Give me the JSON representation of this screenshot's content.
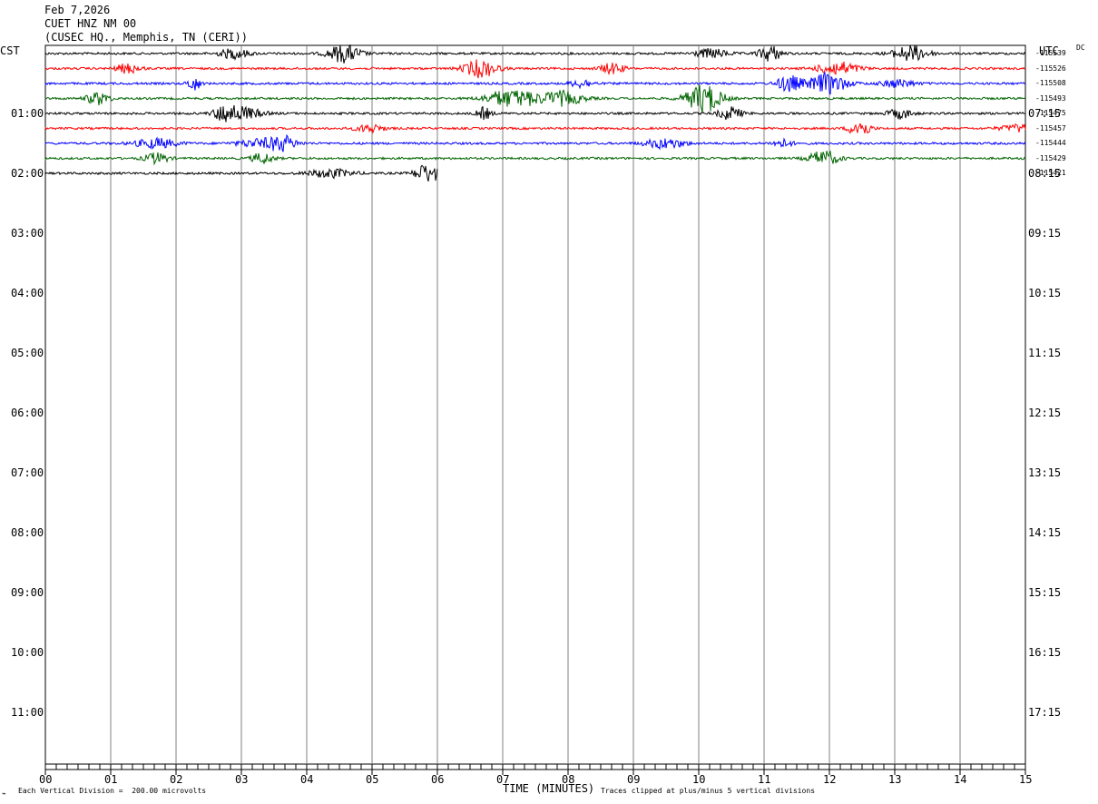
{
  "header": {
    "date": "Feb 7,2026",
    "station": "CUET HNZ NM 00",
    "location": "(CUSEC HQ., Memphis, TN (CERI))"
  },
  "left_corner_label": "CST",
  "right_corner_label": "UTC",
  "dc_label": "DC",
  "footer": {
    "scale_note": "Each Vertical Division =  200.00 microvolts",
    "clip_note": "Traces clipped at plus/minus 5 vertical divisions",
    "x_axis_title": "TIME (MINUTES)"
  },
  "colors": {
    "trace_cycle": [
      "#000000",
      "#ff0000",
      "#0000ff",
      "#006400"
    ],
    "grid": "#808080"
  },
  "chart_data": {
    "type": "line",
    "title": "CUET HNZ NM 00",
    "xlabel": "TIME (MINUTES)",
    "xlim": [
      0,
      15
    ],
    "x_ticks": [
      "00",
      "01",
      "02",
      "03",
      "04",
      "05",
      "06",
      "07",
      "08",
      "09",
      "10",
      "11",
      "12",
      "13",
      "14",
      "15"
    ],
    "left_hour_labels": [
      "01:00",
      "02:00",
      "03:00",
      "04:00",
      "05:00",
      "06:00",
      "07:00",
      "08:00",
      "09:00",
      "10:00",
      "11:00"
    ],
    "right_hour_labels": [
      "07:15",
      "08:15",
      "09:15",
      "10:15",
      "11:15",
      "12:15",
      "13:15",
      "14:15",
      "15:15",
      "16:15",
      "17:15"
    ],
    "traces": [
      {
        "row": 0,
        "dc_offset": "-115539",
        "color": "black",
        "end_minute": 15
      },
      {
        "row": 1,
        "dc_offset": "-115526",
        "color": "red",
        "end_minute": 15
      },
      {
        "row": 2,
        "dc_offset": "-115508",
        "color": "blue",
        "end_minute": 15
      },
      {
        "row": 3,
        "dc_offset": "-115493",
        "color": "green",
        "end_minute": 15
      },
      {
        "row": 4,
        "dc_offset": "-115475",
        "color": "black",
        "end_minute": 15
      },
      {
        "row": 5,
        "dc_offset": "-115457",
        "color": "red",
        "end_minute": 15
      },
      {
        "row": 6,
        "dc_offset": "-115444",
        "color": "blue",
        "end_minute": 15
      },
      {
        "row": 7,
        "dc_offset": "-115429",
        "color": "green",
        "end_minute": 15
      },
      {
        "row": 8,
        "dc_offset": "-115421",
        "color": "black",
        "end_minute": 6
      }
    ]
  }
}
